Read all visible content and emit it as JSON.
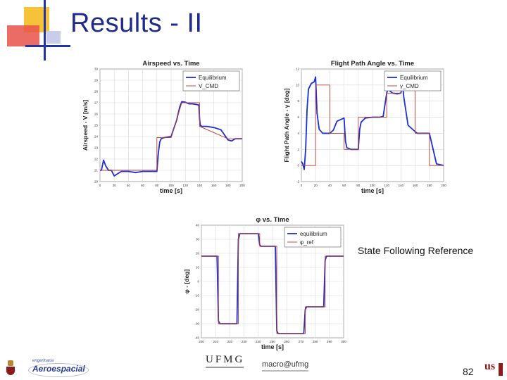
{
  "slide": {
    "title": "Results - II",
    "caption": "State Following Reference",
    "page_number": "82"
  },
  "logos": {
    "aero_top": "engenharia",
    "aero_main": "Aeroespacial",
    "ufmg": "UFMG",
    "macro": "macro@ufmg",
    "univ": "us"
  },
  "colors": {
    "title": "#1f2a8c",
    "series_equilibrium": "#1a2fd6",
    "series_command": "#c0392b",
    "deco_yellow": "#f5c23a",
    "deco_red": "#e8524a",
    "deco_blue": "#2233aa"
  },
  "chart_data": [
    {
      "type": "line",
      "title": "Airspeed vs. Time",
      "xlabel": "time [s]",
      "ylabel": "Airspeed - V [m/s]",
      "xlim": [
        0,
        200
      ],
      "ylim": [
        20,
        30
      ],
      "xticks": [
        0,
        20,
        40,
        60,
        80,
        100,
        120,
        140,
        160,
        180,
        200
      ],
      "yticks": [
        20,
        21,
        22,
        23,
        24,
        25,
        26,
        27,
        28,
        29,
        30
      ],
      "grid": true,
      "legend": "top-right",
      "series": [
        {
          "name": "Equilibrium",
          "color": "#1a2fd6",
          "x": [
            0,
            2,
            5,
            8,
            12,
            16,
            20,
            25,
            30,
            40,
            50,
            60,
            70,
            79,
            80,
            82,
            84,
            86,
            90,
            100,
            108,
            112,
            115,
            120,
            125,
            130,
            135,
            139,
            140,
            141,
            143,
            145,
            150,
            160,
            170,
            180,
            185,
            190,
            200
          ],
          "y": [
            21.0,
            21.0,
            21.9,
            21.4,
            21.0,
            21.0,
            20.5,
            20.7,
            20.9,
            20.9,
            20.8,
            20.9,
            20.9,
            20.9,
            20.9,
            22.5,
            23.5,
            23.8,
            23.9,
            24.0,
            25.5,
            26.6,
            27.1,
            27.05,
            26.9,
            26.9,
            26.85,
            26.8,
            25.6,
            25.0,
            24.9,
            24.9,
            24.9,
            24.8,
            24.6,
            23.7,
            23.6,
            23.8,
            23.8
          ]
        },
        {
          "name": "V_CMD",
          "color": "#c0392b",
          "x": [
            0,
            80,
            80,
            100,
            115,
            140,
            140,
            180,
            200
          ],
          "y": [
            21.0,
            21.0,
            23.9,
            23.9,
            27.0,
            27.0,
            24.9,
            23.8,
            23.8
          ]
        }
      ]
    },
    {
      "type": "line",
      "title": "Flight Path Angle vs. Time",
      "xlabel": "time [s]",
      "ylabel": "Flight Path Angle - γ [deg]",
      "xlim": [
        0,
        200
      ],
      "ylim": [
        -2,
        12
      ],
      "xticks": [
        0,
        20,
        40,
        60,
        80,
        100,
        120,
        140,
        160,
        180,
        200
      ],
      "yticks": [
        -2,
        0,
        2,
        4,
        6,
        8,
        10,
        12
      ],
      "grid": true,
      "legend": "top-right",
      "series": [
        {
          "name": "Equilibrium",
          "color": "#1a2fd6",
          "x": [
            0,
            2,
            4,
            6,
            8,
            10,
            14,
            18,
            20,
            22,
            25,
            30,
            38,
            40,
            45,
            50,
            60,
            62,
            64,
            70,
            80,
            82,
            84,
            90,
            100,
            110,
            115,
            120,
            122,
            124,
            128,
            135,
            140,
            142,
            144,
            150,
            160,
            163,
            167,
            170,
            175,
            180,
            190,
            200
          ],
          "y": [
            0.5,
            0.2,
            -0.5,
            2.0,
            7.0,
            9.5,
            10.2,
            10.4,
            11.0,
            6.5,
            4.5,
            4.0,
            4.0,
            4.0,
            4.4,
            5.5,
            5.9,
            3.0,
            2.2,
            2.0,
            2.0,
            4.5,
            5.4,
            5.9,
            6.0,
            6.0,
            6.1,
            9.0,
            9.6,
            9.3,
            9.0,
            8.9,
            9.0,
            10.3,
            8.5,
            5.0,
            4.2,
            4.0,
            4.0,
            4.0,
            4.0,
            4.0,
            0.2,
            0.0
          ]
        },
        {
          "name": "γ_CMD",
          "color": "#c0392b",
          "x": [
            0,
            20,
            20,
            40,
            40,
            60,
            60,
            80,
            80,
            120,
            120,
            140,
            140,
            160,
            160,
            180,
            180,
            200
          ],
          "y": [
            0,
            0,
            10,
            10,
            4,
            4,
            2,
            2,
            6,
            6,
            9,
            9,
            10,
            10,
            4,
            4,
            0,
            0
          ]
        }
      ]
    },
    {
      "type": "line",
      "title": "φ vs. Time",
      "xlabel": "time [s]",
      "ylabel": "φ - [deg]",
      "xlim": [
        200,
        300
      ],
      "ylim": [
        -40,
        40
      ],
      "xticks": [
        200,
        210,
        220,
        230,
        240,
        250,
        260,
        270,
        280,
        290,
        300
      ],
      "yticks": [
        -40,
        -30,
        -20,
        -10,
        0,
        10,
        20,
        30,
        40
      ],
      "grid": true,
      "legend": "top-right",
      "series": [
        {
          "name": "equilibrium",
          "color": "#1a2fd6",
          "x": [
            200,
            211,
            212,
            213,
            225,
            226,
            227,
            240,
            241,
            242,
            252,
            253,
            254,
            272,
            273,
            274,
            286,
            287,
            288,
            300
          ],
          "y": [
            18,
            18,
            -28,
            -30,
            -30,
            30,
            34,
            34,
            26,
            25,
            25,
            -35,
            -37,
            -37,
            -20,
            -18,
            -18,
            15,
            18,
            18
          ]
        },
        {
          "name": "φ_ref",
          "color": "#c0392b",
          "x": [
            200,
            212,
            212,
            226,
            226,
            241,
            241,
            253,
            253,
            273,
            273,
            287,
            287,
            300
          ],
          "y": [
            18,
            18,
            -30,
            -30,
            34,
            34,
            25,
            25,
            -37,
            -37,
            -18,
            -18,
            18,
            18
          ]
        }
      ]
    }
  ]
}
